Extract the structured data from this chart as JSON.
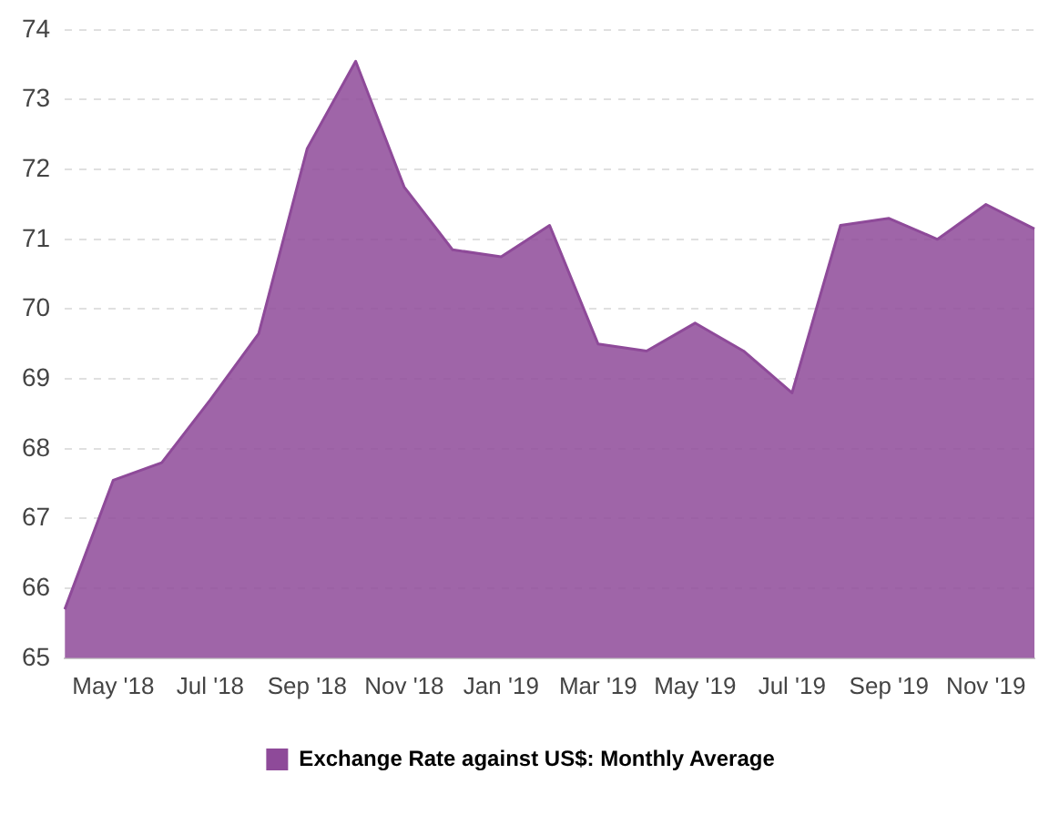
{
  "chart_data": {
    "type": "area",
    "categories": [
      null,
      "May '18",
      null,
      "Jul '18",
      null,
      "Sep '18",
      null,
      "Nov '18",
      null,
      "Jan '19",
      null,
      "Mar '19",
      null,
      "May '19",
      null,
      "Jul '19",
      null,
      "Sep '19",
      null,
      "Nov '19",
      null
    ],
    "series": [
      {
        "name": "Exchange Rate against US$: Monthly Average",
        "color": "#8e4a99",
        "values": [
          65.7,
          67.55,
          67.8,
          68.7,
          69.65,
          72.3,
          73.55,
          71.75,
          70.85,
          70.75,
          71.2,
          69.5,
          69.4,
          69.8,
          69.4,
          68.8,
          71.2,
          71.3,
          71.0,
          71.5,
          71.15
        ]
      }
    ],
    "ylim": [
      65,
      74
    ],
    "yticks": [
      65,
      66,
      67,
      68,
      69,
      70,
      71,
      72,
      73,
      74
    ],
    "grid": "y",
    "legend": "bottom"
  }
}
